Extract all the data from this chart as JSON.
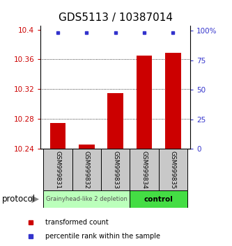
{
  "title": "GDS5113 / 10387014",
  "samples": [
    "GSM999831",
    "GSM999832",
    "GSM999833",
    "GSM999834",
    "GSM999835"
  ],
  "bar_values": [
    10.275,
    10.246,
    10.315,
    10.365,
    10.369
  ],
  "bar_base": 10.24,
  "percentile_values": [
    98,
    98,
    98,
    98,
    98
  ],
  "ylim_left": [
    10.24,
    10.405
  ],
  "ylim_right": [
    0,
    104
  ],
  "yticks_left": [
    10.24,
    10.28,
    10.32,
    10.36,
    10.4
  ],
  "yticks_right": [
    0,
    25,
    50,
    75,
    100
  ],
  "ytick_labels_left": [
    "10.24",
    "10.28",
    "10.32",
    "10.36",
    "10.4"
  ],
  "ytick_labels_right": [
    "0",
    "25",
    "50",
    "75",
    "100%"
  ],
  "bar_color": "#cc0000",
  "dot_color": "#3333cc",
  "grid_color": "#444444",
  "group1_label": "Grainyhead-like 2 depletion",
  "group2_label": "control",
  "group1_color": "#bbffbb",
  "group2_color": "#44dd44",
  "group1_indices": [
    0,
    1,
    2
  ],
  "group2_indices": [
    3,
    4
  ],
  "protocol_label": "protocol",
  "legend_bar_label": "transformed count",
  "legend_dot_label": "percentile rank within the sample",
  "title_fontsize": 11,
  "tick_fontsize": 7.5,
  "sample_fontsize": 6.5
}
